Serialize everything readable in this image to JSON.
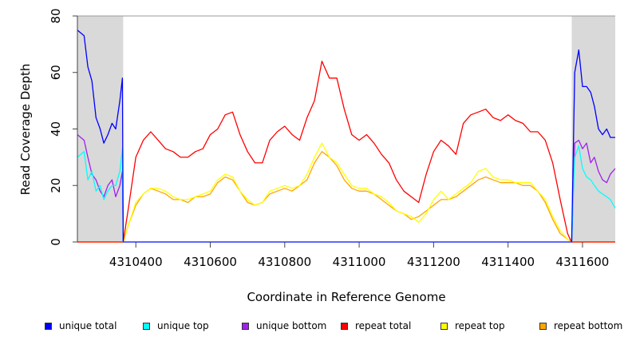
{
  "chart_data": {
    "type": "line",
    "xlabel": "Coordinate in Reference Genome",
    "ylabel": "Read Coverage Depth",
    "xlim": [
      4310243,
      4311688
    ],
    "ylim": [
      0,
      80
    ],
    "xticks": [
      4310400,
      4310600,
      4310800,
      4311000,
      4311200,
      4311400,
      4311600
    ],
    "yticks": [
      0,
      20,
      40,
      60,
      80
    ],
    "shaded_regions": [
      [
        4310243,
        4310366
      ],
      [
        4311571,
        4311688
      ]
    ],
    "grid": false,
    "legend_position": "bottom",
    "series": [
      {
        "name": "unique total",
        "color": "#0000ff",
        "x": [
          4310243,
          4310261,
          4310271,
          4310282,
          4310293,
          4310304,
          4310314,
          4310325,
          4310336,
          4310346,
          4310357,
          4310364,
          4310366,
          4311571,
          4311579,
          4311590,
          4311600,
          4311611,
          4311622,
          4311632,
          4311643,
          4311654,
          4311665,
          4311675,
          4311688
        ],
        "y": [
          75,
          73,
          62,
          57,
          44,
          40,
          35,
          38,
          42,
          40,
          50,
          58,
          0,
          0,
          60,
          68,
          55,
          55,
          53,
          48,
          40,
          38,
          40,
          37,
          37
        ]
      },
      {
        "name": "unique top",
        "color": "#00ffff",
        "x": [
          4310243,
          4310261,
          4310271,
          4310282,
          4310293,
          4310304,
          4310314,
          4310325,
          4310336,
          4310346,
          4310357,
          4310364,
          4310366,
          4311571,
          4311579,
          4311590,
          4311600,
          4311611,
          4311622,
          4311632,
          4311643,
          4311654,
          4311665,
          4311675,
          4311688
        ],
        "y": [
          30,
          32,
          22,
          25,
          18,
          20,
          15,
          18,
          20,
          20,
          25,
          33,
          0,
          0,
          30,
          34,
          26,
          23,
          22,
          20,
          18,
          17,
          16,
          15,
          12
        ]
      },
      {
        "name": "unique bottom",
        "color": "#a020f0",
        "x": [
          4310243,
          4310261,
          4310271,
          4310282,
          4310293,
          4310304,
          4310314,
          4310325,
          4310336,
          4310346,
          4310357,
          4310364,
          4310366,
          4311571,
          4311579,
          4311590,
          4311600,
          4311611,
          4311622,
          4311632,
          4311643,
          4311654,
          4311665,
          4311675,
          4311688
        ],
        "y": [
          38,
          36,
          30,
          24,
          22,
          18,
          16,
          20,
          22,
          16,
          20,
          25,
          0,
          0,
          35,
          36,
          33,
          35,
          28,
          30,
          25,
          22,
          21,
          24,
          26
        ]
      },
      {
        "name": "repeat total",
        "color": "#ff0000",
        "x": "grid",
        "y": [
          0,
          12,
          30,
          36,
          39,
          36,
          33,
          32,
          30,
          30,
          32,
          33,
          38,
          40,
          45,
          46,
          38,
          32,
          28,
          28,
          36,
          39,
          41,
          38,
          36,
          44,
          50,
          64,
          58,
          58,
          47,
          38,
          36,
          38,
          35,
          31,
          28,
          22,
          18,
          16,
          14,
          24,
          32,
          36,
          34,
          31,
          42,
          45,
          46,
          47,
          44,
          43,
          45,
          43,
          42,
          39,
          39,
          36,
          28,
          15,
          3,
          0
        ]
      },
      {
        "name": "repeat top",
        "color": "#ffff00",
        "x": "grid",
        "y": [
          0,
          6,
          14,
          17,
          19,
          19,
          18,
          16,
          15,
          15,
          16,
          17,
          18,
          22,
          24,
          23,
          18,
          15,
          13,
          14,
          18,
          19,
          20,
          19,
          20,
          24,
          30,
          35,
          30,
          28,
          24,
          20,
          19,
          19,
          17,
          16,
          14,
          11,
          10,
          9,
          7,
          10,
          15,
          18,
          15,
          17,
          19,
          21,
          25,
          26,
          23,
          22,
          22,
          21,
          21,
          21,
          18,
          15,
          9,
          4,
          1,
          0
        ]
      },
      {
        "name": "repeat bottom",
        "color": "#ffa500",
        "x": "grid",
        "y": [
          0,
          6,
          13,
          17,
          19,
          18,
          17,
          15,
          15,
          14,
          16,
          16,
          17,
          21,
          23,
          22,
          18,
          14,
          13,
          14,
          17,
          18,
          19,
          18,
          20,
          22,
          28,
          32,
          30,
          27,
          22,
          19,
          18,
          18,
          17,
          15,
          13,
          11,
          10,
          8,
          9,
          11,
          13,
          15,
          15,
          16,
          18,
          20,
          22,
          23,
          22,
          21,
          21,
          21,
          20,
          20,
          18,
          14,
          8,
          3,
          1,
          0
        ]
      }
    ],
    "repeat_grid_x": {
      "first": 4310366,
      "start": 4310380,
      "step": 20,
      "end": 4311560,
      "last": 4311570
    }
  }
}
